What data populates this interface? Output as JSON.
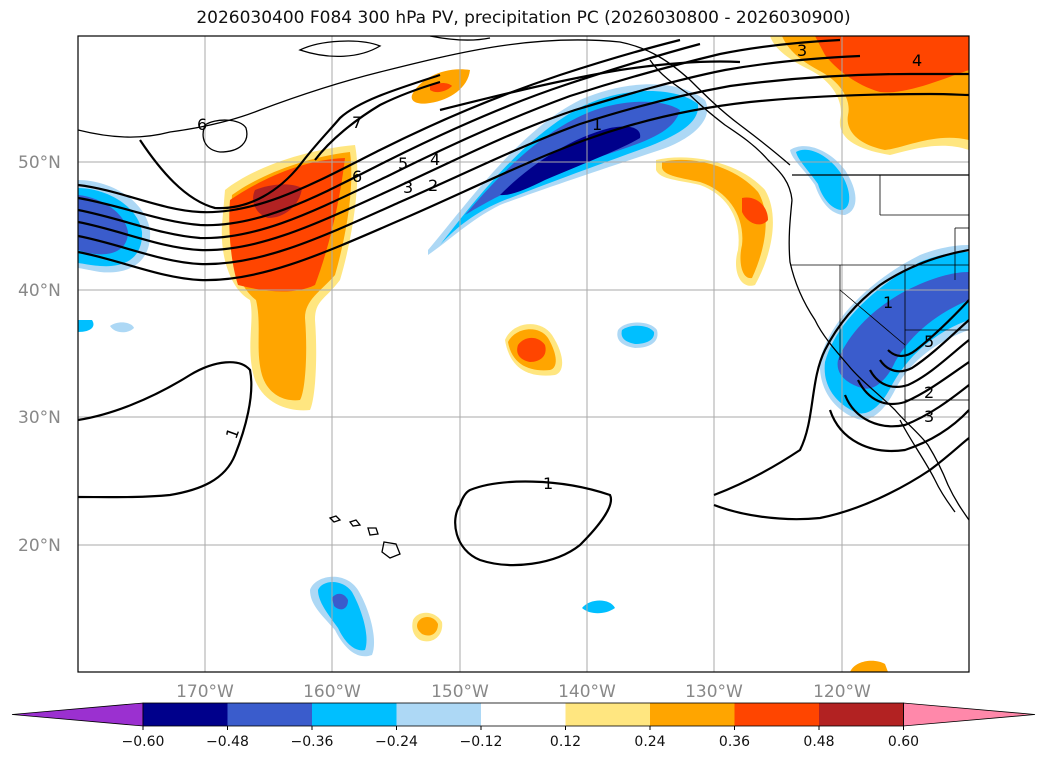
{
  "title": "2026030400 F084 300 hPa PV, precipitation PC (2026030800 - 2026030900)",
  "lat_labels": [
    "50°N",
    "40°N",
    "30°N",
    "20°N"
  ],
  "lon_labels": [
    "170°W",
    "160°W",
    "150°W",
    "140°W",
    "130°W",
    "120°W"
  ],
  "colorbar": {
    "ticks": [
      "−0.60",
      "−0.48",
      "−0.36",
      "−0.24",
      "−0.12",
      "0.12",
      "0.24",
      "0.36",
      "0.48",
      "0.60"
    ],
    "colors": [
      "#9b30d0",
      "#00008b",
      "#3a5ccc",
      "#00bfff",
      "#add8f5",
      "#ffffff",
      "#ffe680",
      "#ffa500",
      "#ff4500",
      "#b22222",
      "#ff88aa"
    ]
  },
  "contour_labels": {
    "c1_left": "1",
    "c1_center": "1",
    "c1_upper": "1",
    "c2": "2",
    "c3": "3",
    "c4": "4",
    "c5": "5",
    "c6": "6",
    "c7": "7",
    "c6_west": "6",
    "c3_ne": "3",
    "c4_ne": "4",
    "c1_us": "1",
    "c5_us": "5",
    "c2_us": "2",
    "c3_us": "3"
  }
}
